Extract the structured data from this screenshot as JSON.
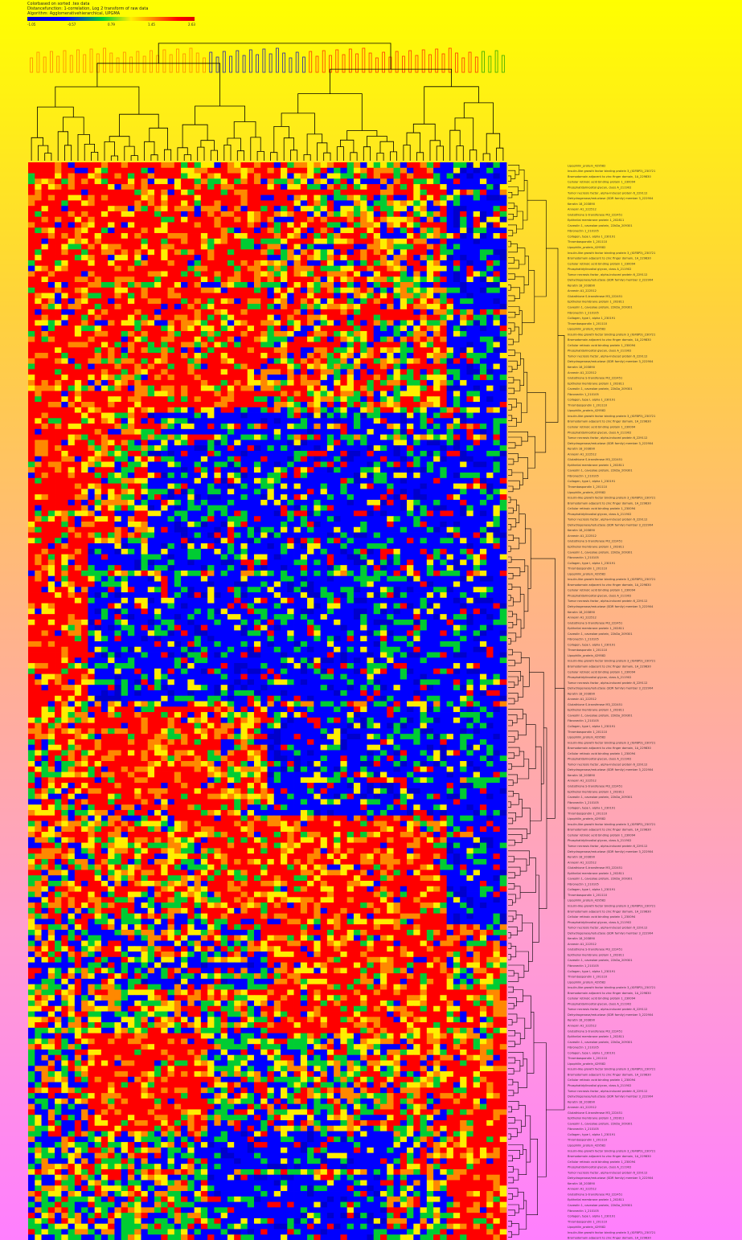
{
  "legend": {
    "line1": "Colorbased on sorted .tex data",
    "line2": "Distancefunction: 1-correlation, Log 2 transform of raw data",
    "line3": "Algorithm: Agglomerativehierarchical, UPGMA",
    "ticks": [
      "-1.05",
      "-0.57",
      "0.79",
      "1.45",
      "2.63"
    ]
  },
  "chart_data": {
    "type": "heatmap",
    "title": "",
    "xlabel": "",
    "ylabel": "",
    "color_scale": [
      "#0000cc",
      "#0000ff",
      "#00cc33",
      "#ffee00",
      "#ff8800",
      "#ff0000"
    ],
    "value_range": [
      -1.05,
      2.63
    ],
    "n_rows": 198,
    "n_cols": 72,
    "column_groups": [
      {
        "color": "#ff8800",
        "count": 27
      },
      {
        "color": "#2222aa",
        "count": 15
      },
      {
        "color": "#ff3300",
        "count": 26
      },
      {
        "color": "#33aa00",
        "count": 4
      }
    ],
    "row_blocks": [
      {
        "rows": 45,
        "pattern": [
          3,
          3,
          3,
          3,
          2,
          2,
          2,
          0
        ]
      },
      {
        "rows": 25,
        "pattern": [
          3,
          2,
          0,
          0,
          0,
          0,
          0,
          0
        ]
      },
      {
        "rows": 30,
        "pattern": [
          3,
          0,
          0,
          0,
          0,
          0,
          0,
          0
        ]
      },
      {
        "rows": 20,
        "pattern": [
          2,
          3,
          3,
          2,
          0,
          0,
          0,
          0
        ]
      },
      {
        "rows": 20,
        "pattern": [
          2,
          2,
          2,
          3,
          3,
          3,
          3,
          0
        ]
      },
      {
        "rows": 20,
        "pattern": [
          1,
          1,
          1,
          1,
          3,
          3,
          3,
          2
        ]
      },
      {
        "rows": 18,
        "pattern": [
          1,
          3,
          3,
          1,
          1,
          1,
          2,
          3
        ]
      },
      {
        "rows": 20,
        "pattern": [
          1,
          1,
          1,
          0,
          0,
          0,
          1,
          3
        ]
      }
    ],
    "gene_labels": [
      "Lipophilin_protein_429582",
      "Insulin-like growth factor binding protein 3_(IGFBP3)_230721",
      "Bromodomain adjacent to zinc finger domain, 1A_229830",
      "Cellular retinoic acid binding protein 1_230094",
      "Phosphatidylinositol glycan, class A_211902",
      "Tumor necrosis factor, alpha-induced protein 6_229112",
      "Dehydrogenase/reductase (SDR family) member 3_222904",
      "Keratin 18_203890",
      "Annexin A1_222512",
      "Glutathione S-transferase M3_222451",
      "Epithelial membrane protein 1_202811",
      "Caveolin 1, caveolae protein, 22kDa_209301",
      "Fibronectin 1_210105",
      "Collagen, type I, alpha 1_230191",
      "Thrombospondin 1_201110"
    ]
  }
}
